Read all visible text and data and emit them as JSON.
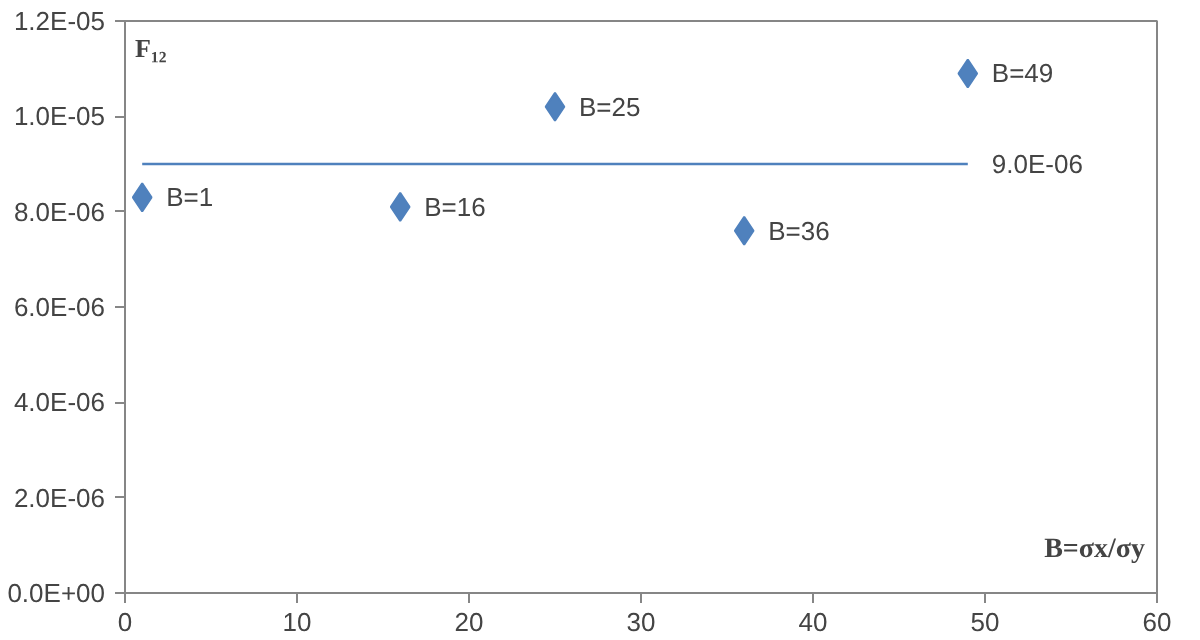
{
  "chart_data": {
    "type": "scatter",
    "xlabel": "B=σx/σy",
    "ylabel": "F₁₂",
    "x": [
      1,
      16,
      25,
      36,
      49
    ],
    "series": [
      {
        "color": "#4f81bd",
        "values": [
          8.3e-06,
          8.1e-06,
          1.02e-05,
          7.6e-06,
          1.09e-05
        ]
      }
    ],
    "marker": "diamond",
    "xlim": [
      0,
      60
    ],
    "xticks": [
      0,
      10,
      20,
      30,
      40,
      50,
      60
    ],
    "ylim": [
      0,
      1.2e-05
    ],
    "yticks": [
      {
        "value": 0,
        "label": "0.0E+00"
      },
      {
        "value": 2e-06,
        "label": "2.0E-06"
      },
      {
        "value": 4e-06,
        "label": "4.0E-06"
      },
      {
        "value": 6e-06,
        "label": "6.0E-06"
      },
      {
        "value": 8e-06,
        "label": "8.0E-06"
      },
      {
        "value": 1e-05,
        "label": "1.0E-05"
      },
      {
        "value": 1.2e-05,
        "label": "1.2E-05"
      }
    ],
    "ref_lines": [
      {
        "axis": "y",
        "value": 9e-06,
        "label": "9.0E-06",
        "color": "#4f81bd"
      }
    ],
    "annotations": [
      {
        "text": "B=1",
        "x": 1,
        "y": 8.3e-06
      },
      {
        "text": "B=16",
        "x": 16,
        "y": 8.1e-06
      },
      {
        "text": "B=25",
        "x": 25,
        "y": 1.02e-05
      },
      {
        "text": "B=36",
        "x": 36,
        "y": 7.6e-06
      },
      {
        "text": "B=49",
        "x": 49,
        "y": 1.09e-05
      }
    ]
  }
}
